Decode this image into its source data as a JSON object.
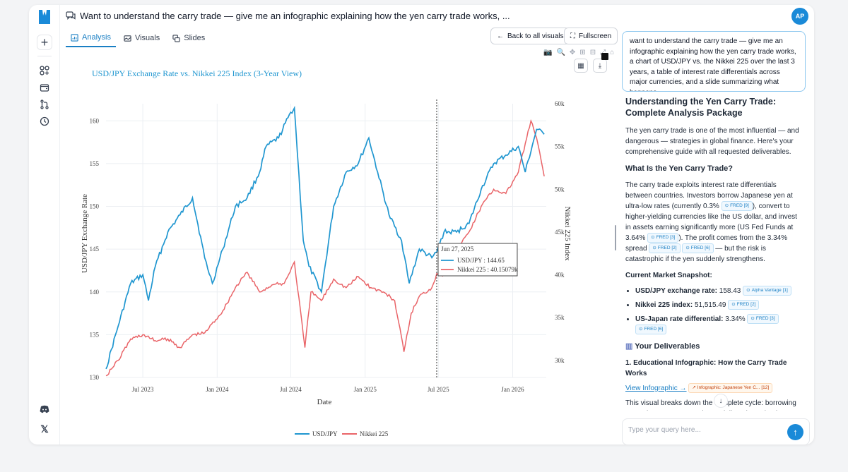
{
  "header": {
    "title": "Want to understand the carry trade — give me an infographic explaining how the yen carry trade works, ...",
    "avatar_initials": "AP"
  },
  "tabs": [
    {
      "label": "Analysis",
      "icon": "chart-icon",
      "active": true
    },
    {
      "label": "Visuals",
      "icon": "image-icon",
      "active": false
    },
    {
      "label": "Slides",
      "icon": "slides-icon",
      "active": false
    }
  ],
  "actions": {
    "back_label": "Back to all visuals",
    "fullscreen_label": "Fullscreen"
  },
  "colors": {
    "accent": "#1a8ad8",
    "usdjpy": "#1f96d0",
    "nikkei": "#e96468"
  },
  "chart_data": {
    "type": "line",
    "title": "USD/JPY Exchange Rate vs. Nikkei 225 Index (3-Year View)",
    "xlabel": "Date",
    "ylabel": "USD/JPY Exchange Rate",
    "y2label": "Nikkei 225 Index",
    "x_ticks": [
      "Jul 2023",
      "Jan 2024",
      "Jul 2024",
      "Jan 2025",
      "Jul 2025",
      "Jan 2026"
    ],
    "y_ticks": [
      "130",
      "135",
      "140",
      "145",
      "150",
      "155",
      "160"
    ],
    "y2_ticks": [
      "30k",
      "35k",
      "40k",
      "45k",
      "50k",
      "55k",
      "60k"
    ],
    "ylim": [
      130,
      162
    ],
    "y2lim": [
      28000,
      60000
    ],
    "legend_position": "bottom",
    "series": [
      {
        "name": "USD/JPY",
        "axis": "left",
        "points": [
          [
            "2023-04-01",
            131
          ],
          [
            "2023-05-01",
            136
          ],
          [
            "2023-06-01",
            141
          ],
          [
            "2023-07-01",
            142
          ],
          [
            "2023-07-15",
            139
          ],
          [
            "2023-08-01",
            143
          ],
          [
            "2023-09-01",
            147
          ],
          [
            "2023-10-01",
            149
          ],
          [
            "2023-11-01",
            151
          ],
          [
            "2023-12-01",
            144
          ],
          [
            "2023-12-20",
            141
          ],
          [
            "2024-01-15",
            145
          ],
          [
            "2024-02-15",
            150
          ],
          [
            "2024-03-15",
            151
          ],
          [
            "2024-04-15",
            154
          ],
          [
            "2024-05-01",
            157
          ],
          [
            "2024-06-01",
            158
          ],
          [
            "2024-07-01",
            161
          ],
          [
            "2024-07-10",
            161.5
          ],
          [
            "2024-08-01",
            146
          ],
          [
            "2024-08-15",
            143
          ],
          [
            "2024-09-15",
            140
          ],
          [
            "2024-10-15",
            150
          ],
          [
            "2024-11-15",
            154
          ],
          [
            "2024-12-15",
            155
          ],
          [
            "2025-01-10",
            158
          ],
          [
            "2025-02-01",
            154
          ],
          [
            "2025-03-01",
            149
          ],
          [
            "2025-04-01",
            146
          ],
          [
            "2025-04-20",
            141
          ],
          [
            "2025-05-15",
            145
          ],
          [
            "2025-06-15",
            144
          ],
          [
            "2025-06-27",
            144.65
          ],
          [
            "2025-07-15",
            147
          ],
          [
            "2025-08-15",
            147
          ],
          [
            "2025-09-15",
            148
          ],
          [
            "2025-10-15",
            152
          ],
          [
            "2025-11-15",
            155
          ],
          [
            "2025-12-15",
            156
          ],
          [
            "2026-01-15",
            157
          ],
          [
            "2026-02-01",
            154
          ],
          [
            "2026-03-01",
            159
          ],
          [
            "2026-03-20",
            158.43
          ]
        ]
      },
      {
        "name": "Nikkei 225",
        "axis": "right",
        "points": [
          [
            "2023-04-01",
            28200
          ],
          [
            "2023-05-01",
            30000
          ],
          [
            "2023-06-01",
            32500
          ],
          [
            "2023-07-01",
            33000
          ],
          [
            "2023-08-01",
            32300
          ],
          [
            "2023-09-01",
            32500
          ],
          [
            "2023-10-01",
            31500
          ],
          [
            "2023-11-01",
            33000
          ],
          [
            "2023-12-01",
            33200
          ],
          [
            "2024-01-15",
            35800
          ],
          [
            "2024-02-15",
            38500
          ],
          [
            "2024-03-15",
            40300
          ],
          [
            "2024-04-15",
            38000
          ],
          [
            "2024-05-15",
            38800
          ],
          [
            "2024-06-15",
            39000
          ],
          [
            "2024-07-10",
            41500
          ],
          [
            "2024-08-05",
            31500
          ],
          [
            "2024-08-20",
            38000
          ],
          [
            "2024-09-15",
            37000
          ],
          [
            "2024-10-15",
            39500
          ],
          [
            "2024-11-15",
            38500
          ],
          [
            "2024-12-15",
            39800
          ],
          [
            "2025-01-15",
            38500
          ],
          [
            "2025-02-15",
            38000
          ],
          [
            "2025-03-15",
            37000
          ],
          [
            "2025-04-07",
            31000
          ],
          [
            "2025-04-25",
            35500
          ],
          [
            "2025-05-15",
            37500
          ],
          [
            "2025-06-15",
            38500
          ],
          [
            "2025-06-27",
            40150
          ],
          [
            "2025-07-15",
            40000
          ],
          [
            "2025-08-15",
            43000
          ],
          [
            "2025-09-15",
            45000
          ],
          [
            "2025-10-15",
            48000
          ],
          [
            "2025-11-15",
            50000
          ],
          [
            "2025-12-15",
            49500
          ],
          [
            "2026-01-15",
            52000
          ],
          [
            "2026-02-15",
            58000
          ],
          [
            "2026-03-01",
            56000
          ],
          [
            "2026-03-20",
            51515
          ]
        ]
      }
    ],
    "hover": {
      "date_label": "Jun 27, 2025",
      "date": "2025-06-27",
      "usdjpy_label": "USD/JPY : 144.65",
      "nikkei_label": "Nikkei 225 : 40.15079k"
    }
  },
  "query": {
    "text": "want to understand the carry trade — give me an infographic explaining how the yen carry trade works, a chart of USD/JPY vs. the Nikkei 225 over the last 3 years, a table of interest rate differentials across major currencies, and a slide summarizing what happens"
  },
  "response": {
    "title": "Understanding the Yen Carry Trade: Complete Analysis Package",
    "intro": "The yen carry trade is one of the most influential — and dangerous — strategies in global finance. Here's your comprehensive guide with all requested deliverables.",
    "h_what": "What Is the Yen Carry Trade?",
    "p1": "The carry trade exploits interest rate differentials between countries. Investors borrow Japanese yen at ultra-low rates (currently 0.3%",
    "p2": "), convert to higher-yielding currencies like the US dollar, and invest in assets earning significantly more (US Fed Funds at 3.64%",
    "p3": "). The profit comes from the 3.34% spread",
    "p4": "— but the risk is catastrophic if the yen suddenly strengthens.",
    "c1": "FRED [9]",
    "c2": "FRED [3]",
    "c3": "FRED [2]",
    "c4": "FRED [6]",
    "snapshot_title": "Current Market Snapshot:",
    "snapshot": [
      {
        "label": "USD/JPY exchange rate:",
        "value": "158.43",
        "cite": "Alpha Vantage [1]"
      },
      {
        "label": "Nikkei 225 index:",
        "value": "51,515.49",
        "cite": "FRED [2]"
      },
      {
        "label": "US-Japan rate differential:",
        "value": "3.34%",
        "cite": "FRED [3]",
        "cite2": "FRED [6]"
      }
    ],
    "deliverables_title": "Your Deliverables",
    "d1_title": "1. Educational Infographic: How the Carry Trade Works",
    "view_link": "View Infographic →",
    "infographic_cite": "Infographic: Japanese Yen C...",
    "infographic_cite_num": "[12]",
    "tail": "This visual breaks down the complete cycle: borrowing yen at low rates, converting to dollars, investing in higher"
  },
  "input": {
    "placeholder": "Type your query here..."
  }
}
